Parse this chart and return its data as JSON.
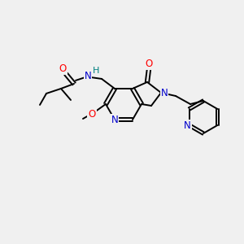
{
  "bg_color": "#f0f0f0",
  "bond_color": "#000000",
  "atom_colors": {
    "N": "#0000cc",
    "O": "#ff0000",
    "C": "#000000",
    "H": "#008080"
  },
  "figsize": [
    3.0,
    3.0
  ],
  "dpi": 100
}
